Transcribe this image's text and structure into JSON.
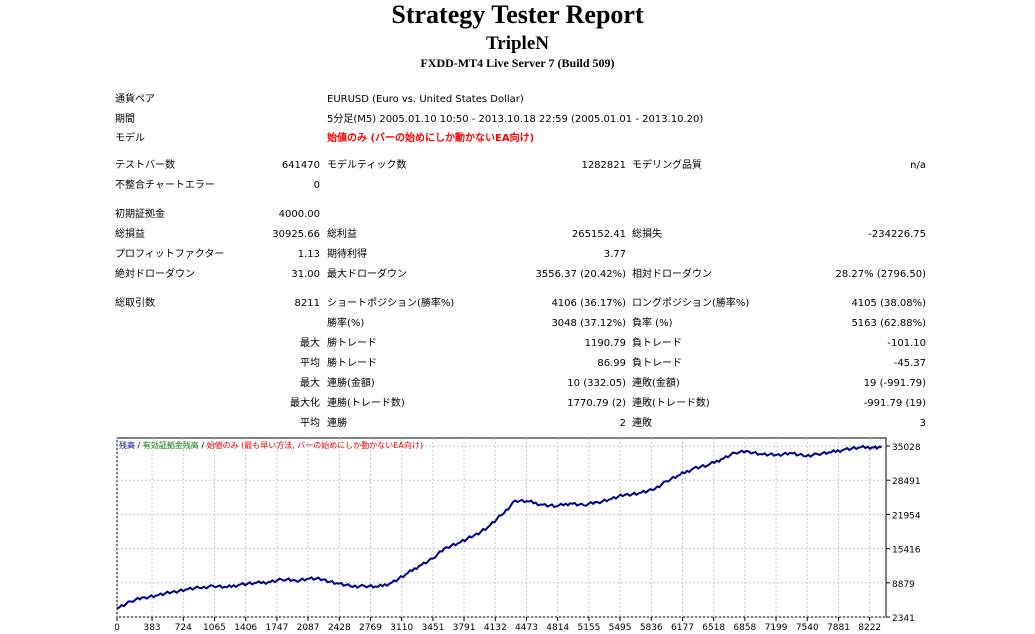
{
  "header": {
    "title": "Strategy Tester Report",
    "ea_name": "TripleN",
    "server": "FXDD-MT4 Live Server 7 (Build 509)"
  },
  "info": {
    "symbol_label": "通貨ペア",
    "symbol_value": "EURUSD (Euro vs. United States Dollar)",
    "period_label": "期間",
    "period_value": "5分足(M5) 2005.01.10 10:50 - 2013.10.18 22:59 (2005.01.01 - 2013.10.20)",
    "model_label": "モデル",
    "model_value": "始値のみ (バーの始めにしか動かないEA向け)"
  },
  "bars": {
    "bars_label": "テストバー数",
    "bars_value": "641470",
    "ticks_label": "モデルティック数",
    "ticks_value": "1282821",
    "quality_label": "モデリング品質",
    "quality_value": "n/a",
    "mismatch_label": "不整合チャートエラー",
    "mismatch_value": "0"
  },
  "stats": {
    "deposit_label": "初期証拠金",
    "deposit_value": "4000.00",
    "net_profit_label": "総損益",
    "net_profit_value": "30925.66",
    "gross_profit_label": "総利益",
    "gross_profit_value": "265152.41",
    "gross_loss_label": "総損失",
    "gross_loss_value": "-234226.75",
    "profit_factor_label": "プロフィットファクター",
    "profit_factor_value": "1.13",
    "expected_payoff_label": "期待利得",
    "expected_payoff_value": "3.77",
    "abs_dd_label": "絶対ドローダウン",
    "abs_dd_value": "31.00",
    "max_dd_label": "最大ドローダウン",
    "max_dd_value": "3556.37 (20.42%)",
    "rel_dd_label": "相対ドローダウン",
    "rel_dd_value": "28.27% (2796.50)"
  },
  "trades": {
    "total_label": "総取引数",
    "total_value": "8211",
    "short_label": "ショートポジション(勝率%)",
    "short_value": "4106 (36.17%)",
    "long_label": "ロングポジション(勝率%)",
    "long_value": "4105 (38.08%)",
    "win_pct_label": "勝率(%)",
    "win_pct_value": "3048 (37.12%)",
    "loss_pct_label": "負率 (%)",
    "loss_pct_value": "5163 (62.88%)",
    "max_label": "最大",
    "largest_win_label": "勝トレード",
    "largest_win_value": "1190.79",
    "largest_loss_label": "負トレード",
    "largest_loss_value": "-101.10",
    "avg_label": "平均",
    "avg_win_label": "勝トレード",
    "avg_win_value": "86.99",
    "avg_loss_label": "負トレード",
    "avg_loss_value": "-45.37",
    "max2_label": "最大",
    "cons_wins_label": "連勝(金額)",
    "cons_wins_value": "10 (332.05)",
    "cons_losses_label": "連敗(金額)",
    "cons_losses_value": "19 (-991.79)",
    "maximal_label": "最大化",
    "maximal_wins_label": "連勝(トレード数)",
    "maximal_wins_value": "1770.79 (2)",
    "maximal_losses_label": "連敗(トレード数)",
    "maximal_losses_value": "-991.79 (19)",
    "avg2_label": "平均",
    "avg_cons_wins_label": "連勝",
    "avg_cons_wins_value": "2",
    "avg_cons_losses_label": "連敗",
    "avg_cons_losses_value": "3"
  },
  "chart_data": {
    "type": "line",
    "legend": {
      "balance": "残高",
      "sep1": " / ",
      "equity": "有効証拠金残高",
      "sep2": " / ",
      "model": "始値のみ (最も早い方法, バーの始めにしか動かないEA向け)"
    },
    "colors": {
      "balance": "#0000a0",
      "equity": "#008000",
      "model": "#ff0000",
      "line": "#00008b"
    },
    "x_ticks": [
      "0",
      "383",
      "724",
      "1065",
      "1406",
      "1747",
      "2087",
      "2428",
      "2769",
      "3110",
      "3451",
      "3791",
      "4132",
      "4473",
      "4814",
      "5155",
      "5495",
      "5836",
      "6177",
      "6518",
      "6858",
      "7199",
      "7540",
      "7881",
      "8222"
    ],
    "y_ticks": [
      "35028",
      "28491",
      "21954",
      "15416",
      "8879",
      "2341"
    ],
    "ylim": [
      2341,
      35028
    ],
    "xlim": [
      0,
      8400
    ],
    "series": [
      {
        "x": [
          0,
          150,
          300,
          450,
          600,
          750,
          900,
          1050,
          1200,
          1350,
          1500,
          1650,
          1800,
          1950,
          2100,
          2250,
          2400,
          2550,
          2700,
          2850,
          3000,
          3150,
          3300,
          3450,
          3600,
          3750,
          3900,
          4050,
          4200,
          4350,
          4500,
          4650,
          4800,
          4950,
          5100,
          5250,
          5400,
          5550,
          5700,
          5850,
          6000,
          6150,
          6300,
          6450,
          6600,
          6750,
          6900,
          7050,
          7200,
          7350,
          7500,
          7650,
          7800,
          7950,
          8100,
          8250,
          8350
        ],
        "y": [
          4000,
          5300,
          6100,
          6500,
          7100,
          7600,
          7900,
          8300,
          8000,
          8600,
          8800,
          9000,
          9500,
          9300,
          9700,
          9500,
          8800,
          8200,
          8300,
          8100,
          8900,
          10400,
          12100,
          13500,
          15700,
          16600,
          17900,
          19500,
          21800,
          24600,
          24400,
          23800,
          23500,
          24100,
          23700,
          24300,
          24900,
          25700,
          26000,
          26600,
          28300,
          29500,
          30800,
          31300,
          32500,
          33700,
          34000,
          33400,
          33300,
          33700,
          33100,
          33500,
          33800,
          34400,
          34700,
          34800,
          34700
        ]
      }
    ]
  }
}
